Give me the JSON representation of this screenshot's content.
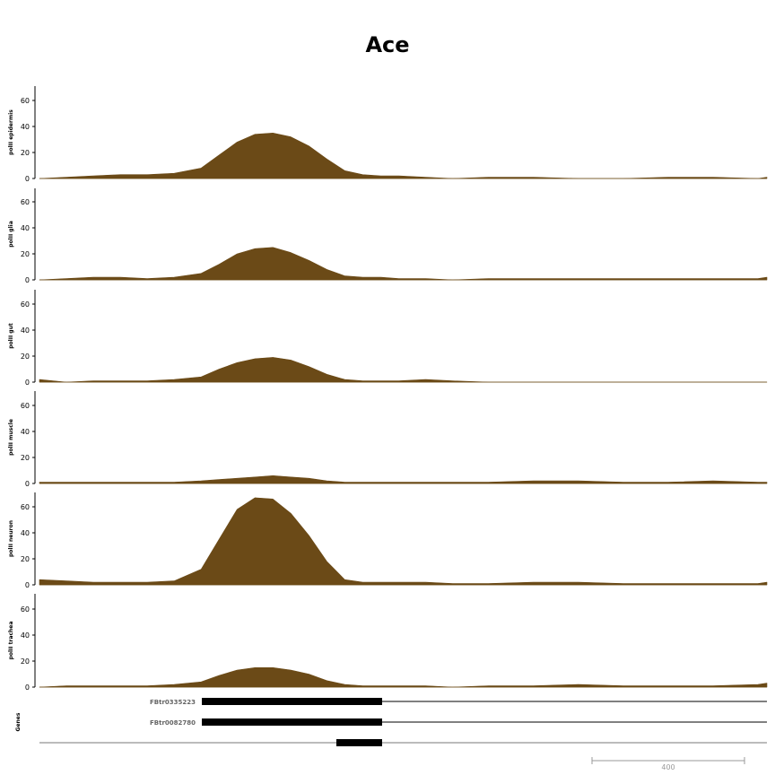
{
  "chart_data": {
    "type": "area",
    "title": "Ace",
    "fill_color": "#6b4a17",
    "ylim": [
      0,
      70
    ],
    "yticks": [
      0,
      20,
      40,
      60
    ],
    "x": [
      0,
      30,
      60,
      90,
      120,
      150,
      180,
      200,
      220,
      240,
      260,
      280,
      300,
      320,
      340,
      360,
      380,
      400,
      430,
      460,
      500,
      550,
      600,
      650,
      700,
      750,
      800,
      810
    ],
    "series": [
      {
        "name": "polII epidermis",
        "values": [
          0,
          1,
          2,
          3,
          3,
          4,
          8,
          18,
          28,
          34,
          35,
          32,
          25,
          15,
          6,
          3,
          2,
          2,
          1,
          0,
          1,
          1,
          0,
          0,
          1,
          1,
          0,
          1
        ]
      },
      {
        "name": "polII glia",
        "values": [
          0,
          1,
          2,
          2,
          1,
          2,
          5,
          12,
          20,
          24,
          25,
          21,
          15,
          8,
          3,
          2,
          2,
          1,
          1,
          0,
          1,
          1,
          1,
          1,
          1,
          1,
          1,
          2
        ]
      },
      {
        "name": "polII gut",
        "values": [
          2,
          0,
          1,
          1,
          1,
          2,
          4,
          10,
          15,
          18,
          19,
          17,
          12,
          6,
          2,
          1,
          1,
          1,
          2,
          1,
          0,
          0,
          0,
          0,
          0,
          0,
          0,
          0
        ]
      },
      {
        "name": "polII muscle",
        "values": [
          1,
          1,
          1,
          1,
          1,
          1,
          2,
          3,
          4,
          5,
          6,
          5,
          4,
          2,
          1,
          1,
          1,
          1,
          1,
          1,
          1,
          2,
          2,
          1,
          1,
          2,
          1,
          1
        ]
      },
      {
        "name": "polII neuron",
        "values": [
          4,
          3,
          2,
          2,
          2,
          3,
          12,
          35,
          58,
          67,
          66,
          55,
          38,
          18,
          4,
          2,
          2,
          2,
          2,
          1,
          1,
          2,
          2,
          1,
          1,
          1,
          1,
          2
        ]
      },
      {
        "name": "polII trachea",
        "values": [
          0,
          1,
          1,
          1,
          1,
          2,
          4,
          9,
          13,
          15,
          15,
          13,
          10,
          5,
          2,
          1,
          1,
          1,
          1,
          0,
          1,
          1,
          2,
          1,
          1,
          1,
          2,
          3
        ]
      }
    ],
    "genes_track": {
      "label": "Genes",
      "transcripts": [
        {
          "name": "FBtr0335223"
        },
        {
          "name": "FBtr0082780"
        },
        {
          "name": ""
        }
      ]
    },
    "scale_bar": {
      "label": "400"
    }
  }
}
